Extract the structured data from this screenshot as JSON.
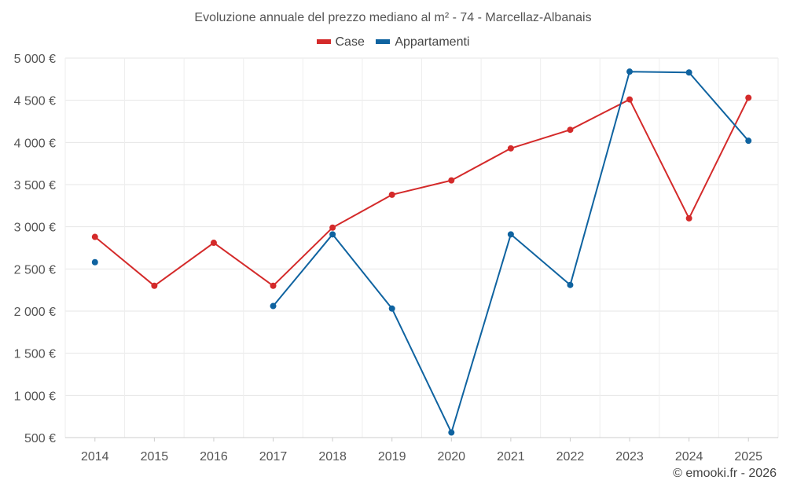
{
  "chart_data": {
    "type": "line",
    "title": "Evoluzione annuale del prezzo mediano al m² - 74 - Marcellaz-Albanais",
    "xlabel": "",
    "ylabel": "",
    "categories": [
      "2014",
      "2015",
      "2016",
      "2017",
      "2018",
      "2019",
      "2020",
      "2021",
      "2022",
      "2023",
      "2024",
      "2025"
    ],
    "ylim": [
      500,
      5000
    ],
    "yticks": [
      500,
      1000,
      1500,
      2000,
      2500,
      3000,
      3500,
      4000,
      4500,
      5000
    ],
    "ytick_labels": [
      "500 €",
      "1 000 €",
      "1 500 €",
      "2 000 €",
      "2 500 €",
      "3 000 €",
      "3 500 €",
      "4 000 €",
      "4 500 €",
      "5 000 €"
    ],
    "grid": true,
    "legend_position": "top-center",
    "series": [
      {
        "name": "Case",
        "color": "#d42a2a",
        "values": [
          2880,
          2300,
          2810,
          2300,
          2990,
          3380,
          3550,
          3930,
          4150,
          4510,
          3100,
          4530
        ]
      },
      {
        "name": "Appartamenti",
        "color": "#0f63a0",
        "values": [
          2580,
          null,
          null,
          2060,
          2910,
          2030,
          560,
          2910,
          2310,
          4840,
          4830,
          4020
        ]
      }
    ]
  },
  "credit": "© emooki.fr - 2026"
}
